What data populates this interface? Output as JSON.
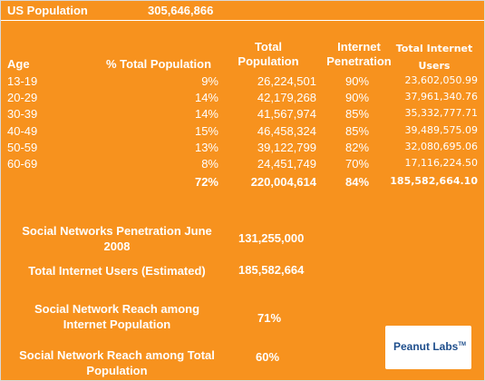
{
  "header": {
    "us_population_label": "US Population",
    "us_population_value": "305,646,866"
  },
  "columns": {
    "age": "Age",
    "pct_total_population": "% Total Population",
    "total_population_line1": "Total",
    "total_population_line2": "Population",
    "internet_penetration_line1": "Internet",
    "internet_penetration_line2": "Penetration",
    "total_internet_users_line1": "Total Internet",
    "total_internet_users_line2": "Users"
  },
  "rows": [
    {
      "age": "13-19",
      "pct": "9%",
      "population": "26,224,501",
      "penetration": "90%",
      "users": "23,602,050.99"
    },
    {
      "age": "20-29",
      "pct": "14%",
      "population": "42,179,268",
      "penetration": "90%",
      "users": "37,961,340.76"
    },
    {
      "age": "30-39",
      "pct": "14%",
      "population": "41,567,974",
      "penetration": "85%",
      "users": "35,332,777.71"
    },
    {
      "age": "40-49",
      "pct": "15%",
      "population": "46,458,324",
      "penetration": "85%",
      "users": "39,489,575.09"
    },
    {
      "age": "50-59",
      "pct": "13%",
      "population": "39,122,799",
      "penetration": "82%",
      "users": "32,080,695.06"
    },
    {
      "age": "60-69",
      "pct": "8%",
      "population": "24,451,749",
      "penetration": "70%",
      "users": "17,116,224.50"
    }
  ],
  "totals": {
    "pct": "72%",
    "population": "220,004,614",
    "penetration": "84%",
    "users": "185,582,664.10"
  },
  "summary": {
    "social_networks_penetration_label": "Social Networks Penetration June 2008",
    "social_networks_penetration_value": "131,255,000",
    "total_internet_users_label": "Total Internet Users (Estimated)",
    "total_internet_users_value": "185,582,664",
    "reach_internet_label": "Social Network Reach among Internet Population",
    "reach_internet_value": "71%",
    "reach_total_label": "Social Network Reach among Total Population",
    "reach_total_value": "60%"
  },
  "logo": {
    "text": "Peanut Labs",
    "tm": "TM"
  },
  "colors": {
    "background": "#f7921e",
    "text": "#ffffff",
    "logo_text": "#1e4e8c"
  }
}
